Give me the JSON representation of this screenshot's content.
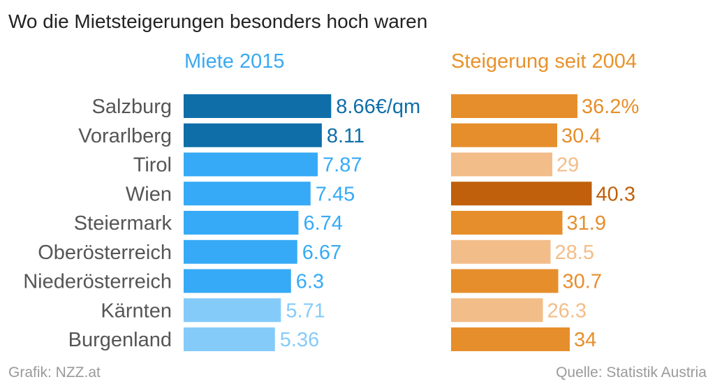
{
  "chart_data": {
    "type": "bar",
    "title": "Wo die Mietsteigerungen besonders hoch waren",
    "categories": [
      "Salzburg",
      "Vorarlberg",
      "Tirol",
      "Wien",
      "Steiermark",
      "Oberösterreich",
      "Niederösterreich",
      "Kärnten",
      "Burgenland"
    ],
    "series": [
      {
        "name": "Miete 2015",
        "values": [
          8.66,
          8.11,
          7.87,
          7.45,
          6.74,
          6.67,
          6.3,
          5.71,
          5.36
        ],
        "labels": [
          "8.66€/qm",
          "8.11",
          "7.87",
          "7.45",
          "6.74",
          "6.67",
          "6.3",
          "5.71",
          "5.36"
        ],
        "header_color": "#3aa9f0",
        "bar_colors": [
          "#0f6ea8",
          "#0f6ea8",
          "#36aaf6",
          "#36aaf6",
          "#36aaf6",
          "#36aaf6",
          "#36aaf6",
          "#85cbfa",
          "#85cbfa"
        ],
        "label_colors": [
          "#0f6ea8",
          "#0f6ea8",
          "#36aaf6",
          "#36aaf6",
          "#36aaf6",
          "#36aaf6",
          "#36aaf6",
          "#85cbfa",
          "#85cbfa"
        ]
      },
      {
        "name": "Steigerung seit 2004",
        "values": [
          36.2,
          30.4,
          29,
          40.3,
          31.9,
          28.5,
          30.7,
          26.3,
          34
        ],
        "labels": [
          "36.2%",
          "30.4",
          "29",
          "40.3",
          "31.9",
          "28.5",
          "30.7",
          "26.3",
          "34"
        ],
        "header_color": "#e8922a",
        "bar_colors": [
          "#e68e2b",
          "#e68e2b",
          "#f3bd89",
          "#c0600c",
          "#e68e2b",
          "#f3bd89",
          "#e68e2b",
          "#f3bd89",
          "#e68e2b"
        ],
        "label_colors": [
          "#e68e2b",
          "#e68e2b",
          "#f3bd89",
          "#c0600c",
          "#e68e2b",
          "#f3bd89",
          "#e68e2b",
          "#f3bd89",
          "#e68e2b"
        ]
      }
    ]
  },
  "footer": {
    "source_left": "Grafik: NZZ.at",
    "source_right": "Quelle: Statistik Austria"
  }
}
